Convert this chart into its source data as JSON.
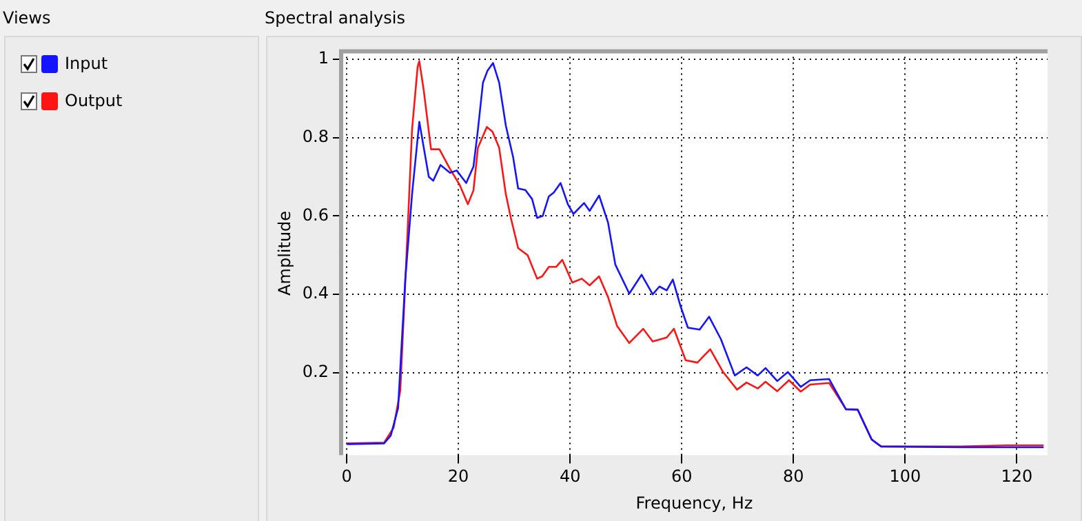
{
  "chart_data": {
    "type": "line",
    "title": "Spectral analysis",
    "legend_title": "Views",
    "xlabel": "Frequency, Hz",
    "ylabel": "Amplitude",
    "legend": "left",
    "grid": true,
    "marker": "none",
    "line_style": "solid",
    "xlim": [
      -1,
      125.5
    ],
    "xticks": [
      0,
      20,
      40,
      60,
      80,
      100,
      120
    ],
    "ylim": [
      -0.01,
      1.02
    ],
    "yticks": [
      0.2,
      0.4,
      0.6,
      0.8,
      1
    ],
    "series": [
      {
        "name": "Input",
        "color": "#1414ff",
        "x": [
          0,
          6.7,
          7.9,
          9.2,
          10.5,
          11.7,
          13,
          14.7,
          15.5,
          16.8,
          18.5,
          19.7,
          21.4,
          22.7,
          23.5,
          24.4,
          25.2,
          26.2,
          27.3,
          28.5,
          29.8,
          30.7,
          32,
          33.2,
          34.1,
          35.1,
          36.2,
          37.1,
          38.3,
          39.6,
          40.6,
          42.5,
          43.5,
          45.2,
          46.8,
          48.1,
          50.6,
          52.8,
          54.8,
          56,
          57.3,
          58.4,
          59.8,
          61.1,
          63.2,
          64.9,
          67,
          69.5,
          71.6,
          73.6,
          75,
          77.1,
          79,
          81.3,
          83,
          86.4,
          89.4,
          91.5,
          94,
          95.7,
          110,
          124.8
        ],
        "values": [
          0.018,
          0.02,
          0.04,
          0.11,
          0.44,
          0.655,
          0.84,
          0.7,
          0.69,
          0.73,
          0.71,
          0.716,
          0.684,
          0.726,
          0.82,
          0.94,
          0.97,
          0.99,
          0.94,
          0.83,
          0.75,
          0.67,
          0.666,
          0.643,
          0.595,
          0.6,
          0.65,
          0.66,
          0.684,
          0.63,
          0.605,
          0.633,
          0.613,
          0.652,
          0.583,
          0.476,
          0.402,
          0.45,
          0.4,
          0.42,
          0.41,
          0.438,
          0.369,
          0.315,
          0.31,
          0.343,
          0.286,
          0.193,
          0.214,
          0.193,
          0.212,
          0.179,
          0.202,
          0.164,
          0.181,
          0.184,
          0.107,
          0.106,
          0.03,
          0.012,
          0.01,
          0.01
        ]
      },
      {
        "name": "Output",
        "color": "#ff1414",
        "x": [
          0,
          6.7,
          8.4,
          9.6,
          10.9,
          11.7,
          12.7,
          13,
          13.8,
          15.1,
          16.6,
          18.5,
          20.2,
          21.7,
          22.7,
          23.5,
          25.1,
          26.1,
          27.3,
          28.5,
          29.4,
          30.7,
          32.4,
          34.1,
          35,
          36.2,
          37.5,
          38.6,
          40.4,
          42.1,
          43.5,
          45.2,
          46.8,
          48.4,
          50.6,
          53.1,
          54.8,
          57.3,
          58.6,
          60.7,
          62.8,
          65.1,
          67.4,
          69.9,
          71.6,
          73.6,
          75,
          77.1,
          79.2,
          81.3,
          83,
          86.4,
          89.4,
          91.5,
          94,
          95.7,
          110,
          118,
          124.8
        ],
        "values": [
          0.02,
          0.022,
          0.06,
          0.155,
          0.56,
          0.82,
          0.98,
          0.995,
          0.92,
          0.77,
          0.77,
          0.72,
          0.68,
          0.63,
          0.665,
          0.774,
          0.827,
          0.815,
          0.774,
          0.655,
          0.595,
          0.518,
          0.5,
          0.44,
          0.446,
          0.47,
          0.47,
          0.488,
          0.43,
          0.44,
          0.423,
          0.446,
          0.393,
          0.32,
          0.276,
          0.312,
          0.28,
          0.29,
          0.312,
          0.232,
          0.226,
          0.26,
          0.202,
          0.157,
          0.175,
          0.16,
          0.177,
          0.153,
          0.181,
          0.152,
          0.17,
          0.174,
          0.107,
          0.106,
          0.03,
          0.012,
          0.012,
          0.015,
          0.015
        ]
      }
    ]
  }
}
